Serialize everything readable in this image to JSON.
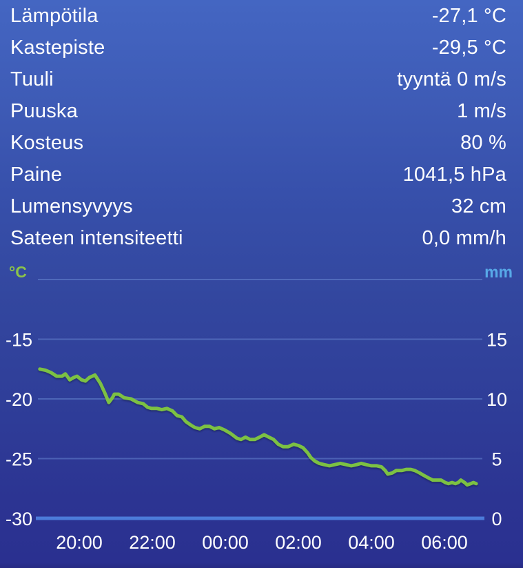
{
  "colors": {
    "text": "#FFFFFF",
    "temp_line": "#7CC143",
    "left_unit": "#8BC34A",
    "right_unit": "#58A9E8",
    "gridline": "#7394DB",
    "baseline": "#4E80DE"
  },
  "observations": [
    {
      "label": "Lämpötila",
      "value": "-27,1 °C"
    },
    {
      "label": "Kastepiste",
      "value": "-29,5 °C"
    },
    {
      "label": "Tuuli",
      "value": "tyyntä 0 m/s"
    },
    {
      "label": "Puuska",
      "value": "1 m/s"
    },
    {
      "label": "Kosteus",
      "value": "80 %"
    },
    {
      "label": "Paine",
      "value": "1041,5 hPa"
    },
    {
      "label": "Lumensyvyys",
      "value": "32 cm"
    },
    {
      "label": "Sateen intensiteetti",
      "value": "0,0 mm/h"
    }
  ],
  "chart_data": {
    "type": "line",
    "left_axis": {
      "unit": "°C",
      "range": [
        -31.5,
        -8.5
      ]
    },
    "right_axis": {
      "unit": "mm",
      "range": [
        -1.5,
        21.5
      ]
    },
    "x_axis": {
      "unit": "hours (24+ = next day)",
      "range": [
        18.87,
        31.04
      ]
    },
    "grid": "horizontal-only",
    "gridlines": [
      {
        "value_c": -10,
        "label_left": "",
        "value_mm": 20,
        "label_right": ""
      },
      {
        "value_c": -15,
        "label_left": "-15",
        "value_mm": 15,
        "label_right": "15"
      },
      {
        "value_c": -20,
        "label_left": "-20",
        "value_mm": 10,
        "label_right": "10"
      },
      {
        "value_c": -25,
        "label_left": "-25",
        "value_mm": 5,
        "label_right": "5"
      },
      {
        "value_c": -30,
        "label_left": "-30",
        "value_mm": 0,
        "label_right": "0"
      }
    ],
    "x_ticks": [
      {
        "pos": 20,
        "label": "20:00"
      },
      {
        "pos": 22,
        "label": "22:00"
      },
      {
        "pos": 24,
        "label": "00:00"
      },
      {
        "pos": 26,
        "label": "02:00"
      },
      {
        "pos": 28,
        "label": "04:00"
      },
      {
        "pos": 30,
        "label": "06:00"
      }
    ],
    "series": [
      {
        "name": "Lämpötila (°C)",
        "color": "#7CC143",
        "points": [
          [
            18.92,
            -17.5
          ],
          [
            19.08,
            -17.6
          ],
          [
            19.23,
            -17.8
          ],
          [
            19.38,
            -18.1
          ],
          [
            19.53,
            -18.1
          ],
          [
            19.62,
            -17.9
          ],
          [
            19.74,
            -18.4
          ],
          [
            19.85,
            -18.2
          ],
          [
            19.94,
            -18.1
          ],
          [
            20.06,
            -18.4
          ],
          [
            20.17,
            -18.5
          ],
          [
            20.28,
            -18.2
          ],
          [
            20.43,
            -18.0
          ],
          [
            20.58,
            -18.7
          ],
          [
            20.7,
            -19.5
          ],
          [
            20.81,
            -20.3
          ],
          [
            20.91,
            -19.9
          ],
          [
            20.96,
            -19.6
          ],
          [
            21.08,
            -19.6
          ],
          [
            21.23,
            -19.9
          ],
          [
            21.42,
            -20.0
          ],
          [
            21.6,
            -20.3
          ],
          [
            21.75,
            -20.4
          ],
          [
            21.87,
            -20.7
          ],
          [
            21.98,
            -20.8
          ],
          [
            22.13,
            -20.8
          ],
          [
            22.26,
            -20.9
          ],
          [
            22.4,
            -20.8
          ],
          [
            22.55,
            -21.0
          ],
          [
            22.68,
            -21.4
          ],
          [
            22.81,
            -21.5
          ],
          [
            22.92,
            -21.9
          ],
          [
            23.06,
            -22.2
          ],
          [
            23.17,
            -22.4
          ],
          [
            23.3,
            -22.5
          ],
          [
            23.43,
            -22.3
          ],
          [
            23.57,
            -22.3
          ],
          [
            23.7,
            -22.5
          ],
          [
            23.83,
            -22.4
          ],
          [
            23.98,
            -22.6
          ],
          [
            24.15,
            -22.9
          ],
          [
            24.32,
            -23.3
          ],
          [
            24.43,
            -23.4
          ],
          [
            24.55,
            -23.2
          ],
          [
            24.68,
            -23.4
          ],
          [
            24.81,
            -23.4
          ],
          [
            24.94,
            -23.2
          ],
          [
            25.06,
            -23.0
          ],
          [
            25.19,
            -23.2
          ],
          [
            25.32,
            -23.4
          ],
          [
            25.45,
            -23.8
          ],
          [
            25.58,
            -24.0
          ],
          [
            25.72,
            -24.0
          ],
          [
            25.87,
            -23.8
          ],
          [
            26.0,
            -23.9
          ],
          [
            26.13,
            -24.1
          ],
          [
            26.25,
            -24.5
          ],
          [
            26.34,
            -24.9
          ],
          [
            26.45,
            -25.2
          ],
          [
            26.57,
            -25.4
          ],
          [
            26.7,
            -25.5
          ],
          [
            26.85,
            -25.6
          ],
          [
            27.0,
            -25.5
          ],
          [
            27.15,
            -25.4
          ],
          [
            27.3,
            -25.5
          ],
          [
            27.45,
            -25.6
          ],
          [
            27.6,
            -25.5
          ],
          [
            27.72,
            -25.4
          ],
          [
            27.85,
            -25.5
          ],
          [
            28.0,
            -25.6
          ],
          [
            28.15,
            -25.6
          ],
          [
            28.28,
            -25.7
          ],
          [
            28.38,
            -26.0
          ],
          [
            28.45,
            -26.3
          ],
          [
            28.57,
            -26.2
          ],
          [
            28.68,
            -26.0
          ],
          [
            28.83,
            -26.0
          ],
          [
            28.96,
            -25.9
          ],
          [
            29.08,
            -25.9
          ],
          [
            29.19,
            -26.0
          ],
          [
            29.32,
            -26.2
          ],
          [
            29.43,
            -26.4
          ],
          [
            29.55,
            -26.6
          ],
          [
            29.68,
            -26.8
          ],
          [
            29.79,
            -26.8
          ],
          [
            29.91,
            -26.8
          ],
          [
            30.02,
            -27.0
          ],
          [
            30.11,
            -27.1
          ],
          [
            30.21,
            -27.0
          ],
          [
            30.3,
            -27.1
          ],
          [
            30.38,
            -27.0
          ],
          [
            30.45,
            -26.8
          ],
          [
            30.55,
            -27.0
          ],
          [
            30.62,
            -27.2
          ],
          [
            30.72,
            -27.1
          ],
          [
            30.79,
            -27.0
          ],
          [
            30.87,
            -27.1
          ]
        ]
      }
    ]
  }
}
